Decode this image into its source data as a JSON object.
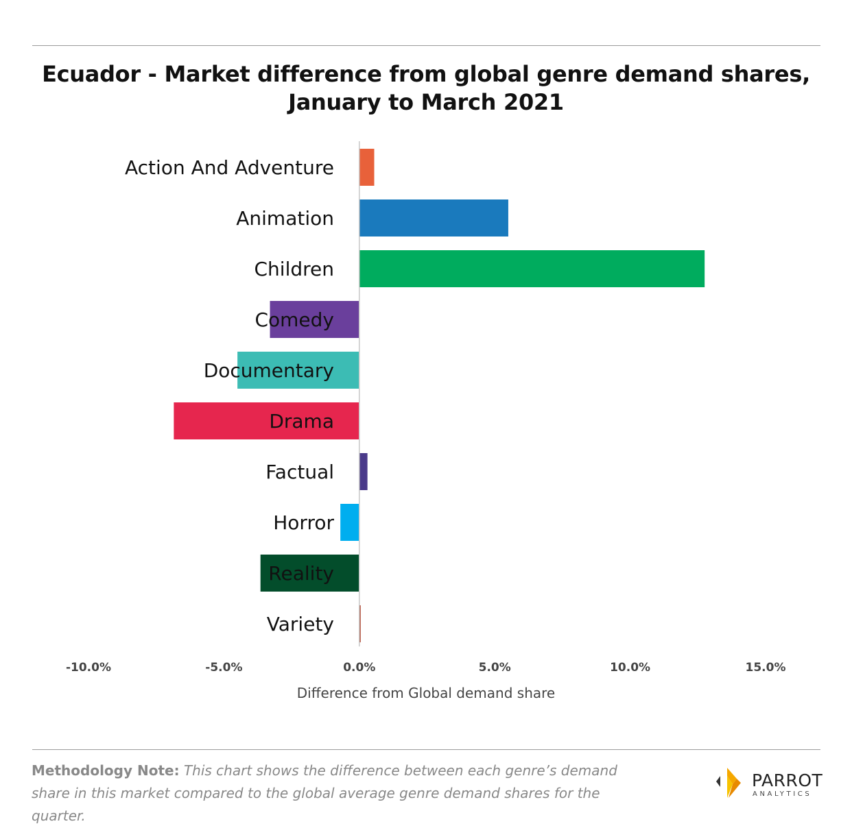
{
  "page": {
    "title_line1": "Ecuador - Market difference from global genre demand shares,",
    "title_line2": "January to March 2021",
    "xlabel": "Difference from Global demand share",
    "methodology_label": "Methodology Note:",
    "methodology_text": "This chart shows the difference between each genre’s demand share in this market compared to the global average genre demand shares for the quarter.",
    "logo_word": "PARROT",
    "logo_sub": "ANALYTICS"
  },
  "chart_data": {
    "type": "bar",
    "orientation": "horizontal",
    "title": "Ecuador - Market difference from global genre demand shares, January to March 2021",
    "xlabel": "Difference from Global demand share",
    "ylabel": "",
    "xlim": [
      -10,
      15
    ],
    "x_ticks": [
      -10,
      -5,
      0,
      5,
      10,
      15
    ],
    "x_tick_labels": [
      "-10.0%",
      "-5.0%",
      "0.0%",
      "5.0%",
      "10.0%",
      "15.0%"
    ],
    "grid": false,
    "legend": "none",
    "categories": [
      "Action And Adventure",
      "Animation",
      "Children",
      "Comedy",
      "Documentary",
      "Drama",
      "Factual",
      "Horror",
      "Reality",
      "Variety"
    ],
    "values": [
      0.55,
      5.5,
      12.75,
      -3.3,
      -4.5,
      -6.85,
      0.3,
      -0.7,
      -3.65,
      0.05
    ],
    "colors": [
      "#e8613a",
      "#1a7abd",
      "#00ac5e",
      "#6a3f9c",
      "#3cbcb4",
      "#e6264e",
      "#4a3a8a",
      "#00aeef",
      "#034d2b",
      "#b0422c"
    ]
  }
}
